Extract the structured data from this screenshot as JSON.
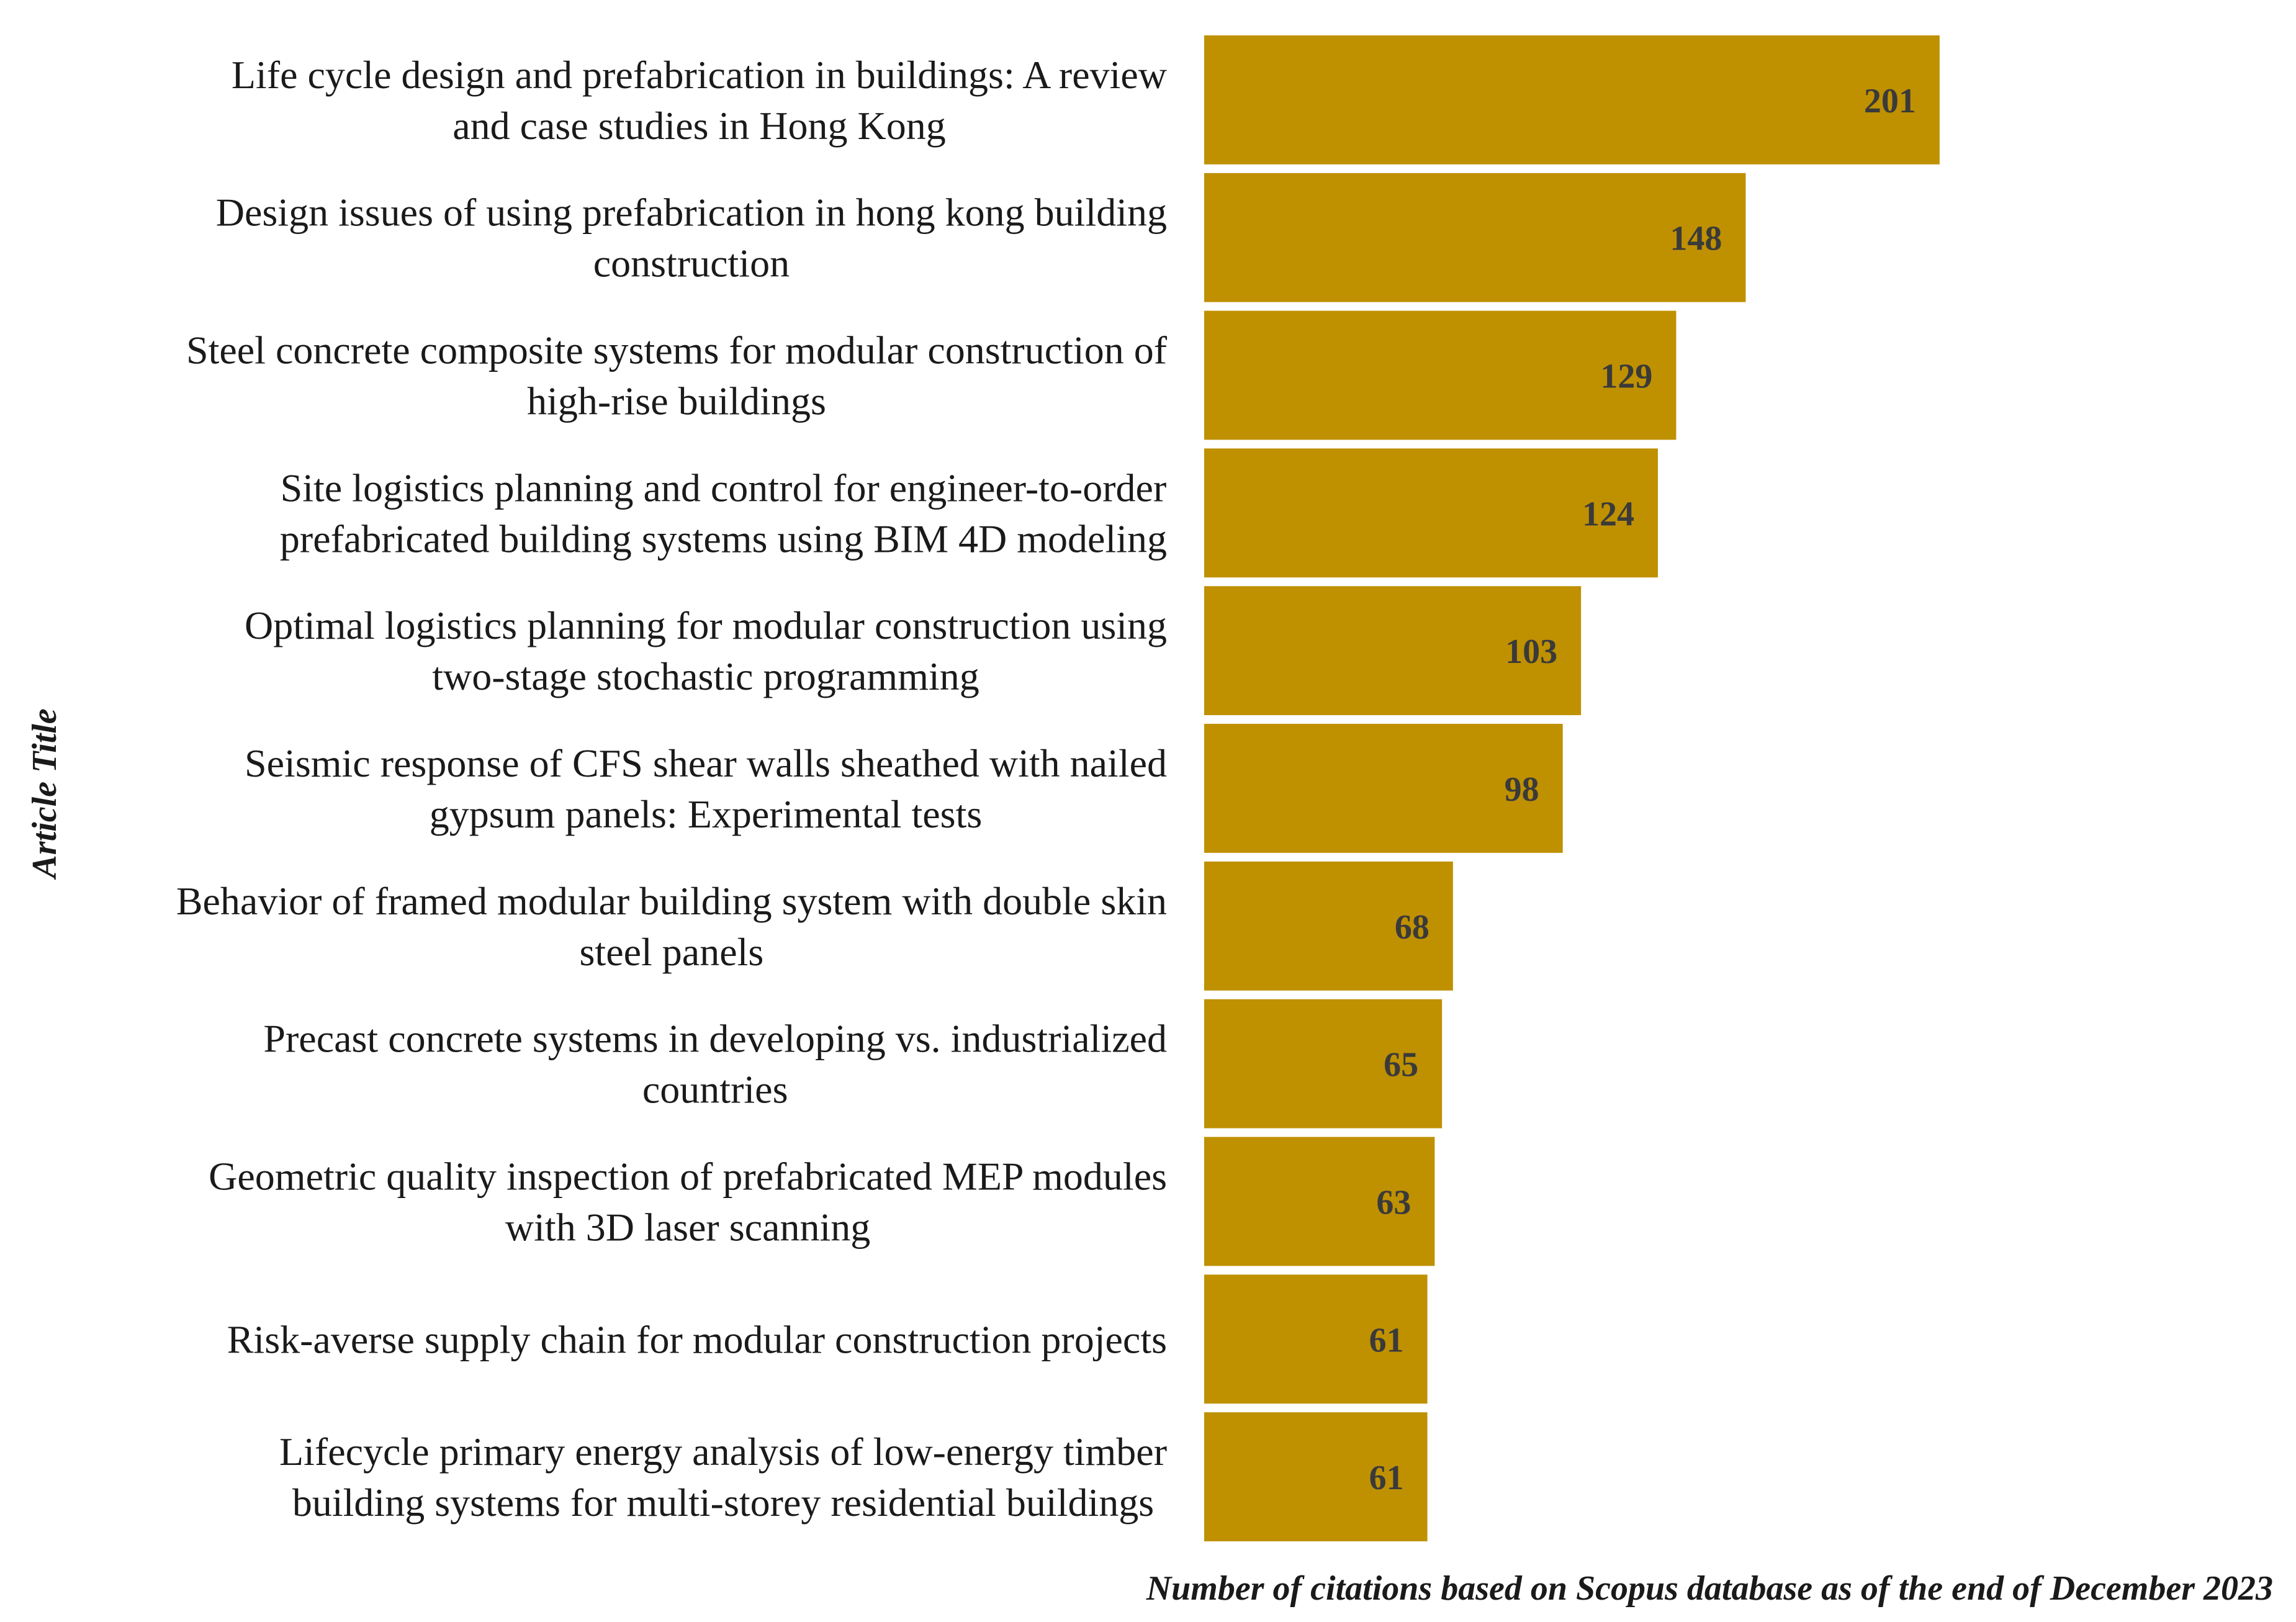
{
  "chart_data": {
    "type": "bar",
    "orientation": "horizontal",
    "categories": [
      [
        "Life cycle design and prefabrication in buildings: A review",
        "and case studies in Hong Kong"
      ],
      [
        "Design issues of using prefabrication in hong kong building",
        "construction"
      ],
      [
        "Steel concrete composite systems for modular construction of",
        "high-rise buildings"
      ],
      [
        "Site logistics planning and control for engineer-to-order",
        "prefabricated building systems using BIM 4D modeling"
      ],
      [
        "Optimal logistics planning for modular construction using",
        "two-stage stochastic programming"
      ],
      [
        "Seismic response of CFS shear walls sheathed with nailed",
        "gypsum panels: Experimental tests"
      ],
      [
        "Behavior of framed modular building system with double skin",
        "steel panels"
      ],
      [
        "Precast concrete systems in developing vs. industrialized",
        "countries"
      ],
      [
        "Geometric quality inspection of prefabricated MEP modules",
        "with 3D laser scanning"
      ],
      [
        "Risk-averse supply chain for modular construction projects"
      ],
      [
        "Lifecycle primary energy analysis of low-energy timber",
        "building systems for multi-storey residential buildings"
      ]
    ],
    "values": [
      201,
      148,
      129,
      124,
      103,
      98,
      68,
      65,
      63,
      61,
      61
    ],
    "title": "",
    "xlabel": "Number of citations based on Scopus database as of the end of December 2023",
    "ylabel": "Article Title",
    "xlim": [
      0,
      266
    ],
    "bar_color": "#BF9000",
    "label_color": "#3a3a3a",
    "grid": false,
    "legend": "none"
  }
}
